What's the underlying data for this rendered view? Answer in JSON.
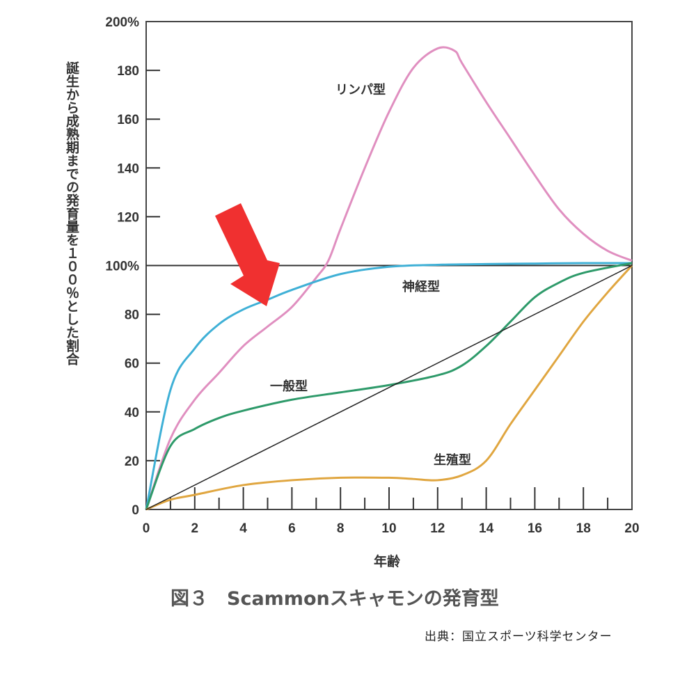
{
  "chart_data": {
    "type": "line",
    "title": "図３　Scammonスキャモンの発育型",
    "xlabel": "年齢",
    "ylabel": "誕生から成熟期までの発育量を１００％とした割合",
    "source": "出典：国立スポーツ科学センター",
    "xlim": [
      0,
      20
    ],
    "ylim": [
      0,
      200
    ],
    "x_ticks": [
      "0",
      "2",
      "4",
      "6",
      "8",
      "10",
      "12",
      "14",
      "16",
      "18",
      "20"
    ],
    "y_ticks": [
      "0",
      "20",
      "40",
      "60",
      "80",
      "100%",
      "120",
      "140",
      "160",
      "180",
      "200%"
    ],
    "reference_line": 100,
    "annotation": "red-arrow pointing at 神経型 curve near age 5",
    "series": [
      {
        "name": "リンパ型",
        "color": "#e08fc0",
        "x": [
          0,
          1,
          2,
          3,
          4,
          5,
          6,
          7,
          7.5,
          8,
          9,
          10,
          11,
          12,
          12.7,
          13,
          14,
          15,
          16,
          17,
          18,
          19,
          20
        ],
        "y": [
          0,
          29,
          45,
          56,
          67,
          75,
          83,
          95,
          102,
          115,
          140,
          163,
          181,
          189,
          188,
          183,
          167,
          152,
          137,
          123,
          113,
          106,
          102
        ]
      },
      {
        "name": "神経型",
        "color": "#3fb0d6",
        "x": [
          0,
          1,
          2,
          3,
          4,
          5,
          6,
          8,
          10,
          12,
          14,
          16,
          18,
          20
        ],
        "y": [
          0,
          49,
          66,
          76,
          82,
          86,
          90,
          96.5,
          99.5,
          100.3,
          100.6,
          100.8,
          101,
          101
        ]
      },
      {
        "name": "一般型",
        "color": "#2e9a6a",
        "x": [
          0,
          1,
          2,
          3,
          4,
          6,
          8,
          10,
          12,
          13,
          14,
          15,
          16,
          17,
          18,
          20
        ],
        "y": [
          0,
          26,
          33,
          37.5,
          40.5,
          45,
          48,
          51,
          55,
          59,
          67,
          77,
          87,
          93,
          97,
          101
        ]
      },
      {
        "name": "生殖型",
        "color": "#e0a640",
        "x": [
          0,
          1,
          2,
          4,
          6,
          8,
          10,
          11,
          12,
          13,
          14,
          15,
          16,
          17,
          18,
          19,
          20
        ],
        "y": [
          0,
          4,
          6,
          10,
          12,
          13,
          13,
          12.5,
          12,
          14,
          20,
          35,
          49,
          63,
          77,
          89,
          100
        ]
      },
      {
        "name": "linear",
        "color": "#222222",
        "x": [
          0,
          20
        ],
        "y": [
          0,
          100
        ]
      }
    ],
    "arrow_color": "#f03030"
  }
}
